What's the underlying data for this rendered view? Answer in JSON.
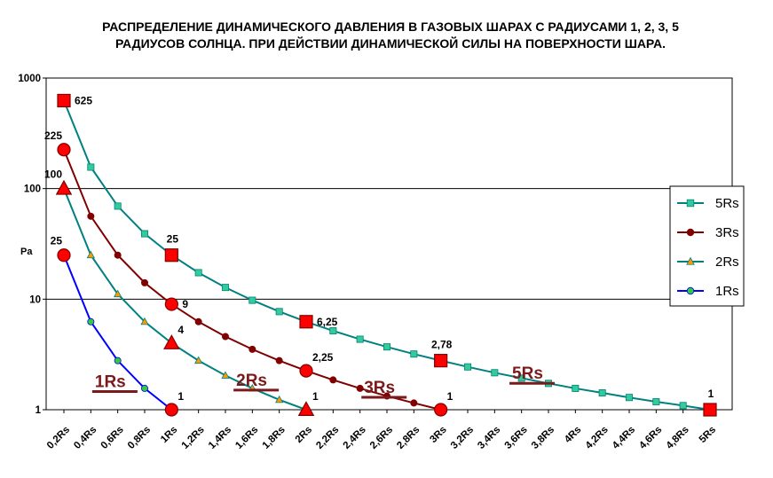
{
  "chart_data": {
    "type": "line",
    "title_lines": [
      "РАСПРЕДЕЛЕНИЕ ДИНАМИЧЕСКОГО ДАВЛЕНИЯ В ГАЗОВЫХ ШАРАХ С РАДИУСАМИ 1, 2, 3, 5",
      "РАДИУСОВ СОЛНЦА. ПРИ ДЕЙСТВИИ ДИНАМИЧЕСКОЙ СИЛЫ НА ПОВЕРХНОСТИ ШАРА."
    ],
    "ylabel": "Pa",
    "y_scale": "log",
    "ylim": [
      1,
      1000
    ],
    "y_ticks": [
      {
        "value": 1,
        "label": "1"
      },
      {
        "value": 10,
        "label": "10"
      },
      {
        "value": 100,
        "label": "100"
      },
      {
        "value": 1000,
        "label": "1000"
      }
    ],
    "xlim": [
      0.2,
      5.0
    ],
    "x_ticks": [
      {
        "value": 0.2,
        "label": "0,2Rs",
        "color": "#000000"
      },
      {
        "value": 0.4,
        "label": "0,4Rs",
        "color": "#000000"
      },
      {
        "value": 0.6,
        "label": "0,6Rs",
        "color": "#000000"
      },
      {
        "value": 0.8,
        "label": "0,8Rs",
        "color": "#000000"
      },
      {
        "value": 1.0,
        "label": "1Rs",
        "color": "#ff0000"
      },
      {
        "value": 1.2,
        "label": "1,2Rs",
        "color": "#000000"
      },
      {
        "value": 1.4,
        "label": "1,4Rs",
        "color": "#000000"
      },
      {
        "value": 1.6,
        "label": "1,6Rs",
        "color": "#000000"
      },
      {
        "value": 1.8,
        "label": "1,8Rs",
        "color": "#000000"
      },
      {
        "value": 2.0,
        "label": "2Rs",
        "color": "#ff0000"
      },
      {
        "value": 2.2,
        "label": "2,2Rs",
        "color": "#000000"
      },
      {
        "value": 2.4,
        "label": "2,4Rs",
        "color": "#000000"
      },
      {
        "value": 2.6,
        "label": "2,6Rs",
        "color": "#000000"
      },
      {
        "value": 2.8,
        "label": "2,8Rs",
        "color": "#000000"
      },
      {
        "value": 3.0,
        "label": "3Rs",
        "color": "#ff0000"
      },
      {
        "value": 3.2,
        "label": "3,2Rs",
        "color": "#000000"
      },
      {
        "value": 3.4,
        "label": "3,4Rs",
        "color": "#000000"
      },
      {
        "value": 3.6,
        "label": "3,6Rs",
        "color": "#000000"
      },
      {
        "value": 3.8,
        "label": "3,8Rs",
        "color": "#000000"
      },
      {
        "value": 4.0,
        "label": "4Rs",
        "color": "#000000"
      },
      {
        "value": 4.2,
        "label": "4,2Rs",
        "color": "#000000"
      },
      {
        "value": 4.4,
        "label": "4,4Rs",
        "color": "#000000"
      },
      {
        "value": 4.6,
        "label": "4,6Rs",
        "color": "#000000"
      },
      {
        "value": 4.8,
        "label": "4,8Rs",
        "color": "#000000"
      },
      {
        "value": 5.0,
        "label": "5Rs",
        "color": "#ff0000"
      }
    ],
    "legend": {
      "placement": "right"
    },
    "series": [
      {
        "name": "5Rs",
        "color": "#008080",
        "marker": "square",
        "marker_color": "#33cc99",
        "x": [
          0.2,
          0.4,
          0.6,
          0.8,
          1.0,
          1.2,
          1.4,
          1.6,
          1.8,
          2.0,
          2.2,
          2.4,
          2.6,
          2.8,
          3.0,
          3.2,
          3.4,
          3.6,
          3.8,
          4.0,
          4.2,
          4.4,
          4.6,
          4.8,
          5.0
        ],
        "y": [
          625,
          156.25,
          69.44,
          39.06,
          25,
          17.36,
          12.76,
          9.77,
          7.72,
          6.25,
          5.17,
          4.34,
          3.7,
          3.19,
          2.78,
          2.44,
          2.16,
          1.93,
          1.73,
          1.56,
          1.42,
          1.29,
          1.18,
          1.09,
          1
        ]
      },
      {
        "name": "3Rs",
        "color": "#800000",
        "marker": "circle",
        "marker_color": "#800000",
        "x": [
          0.2,
          0.4,
          0.6,
          0.8,
          1.0,
          1.2,
          1.4,
          1.6,
          1.8,
          2.0,
          2.2,
          2.4,
          2.6,
          2.8,
          3.0
        ],
        "y": [
          225,
          56.25,
          25,
          14.06,
          9,
          6.25,
          4.59,
          3.52,
          2.78,
          2.25,
          1.86,
          1.56,
          1.33,
          1.15,
          1
        ]
      },
      {
        "name": "2Rs",
        "color": "#008080",
        "marker": "triangle",
        "marker_color": "#ff9900",
        "x": [
          0.2,
          0.4,
          0.6,
          0.8,
          1.0,
          1.2,
          1.4,
          1.6,
          1.8,
          2.0
        ],
        "y": [
          100,
          25,
          11.11,
          6.25,
          4,
          2.78,
          2.04,
          1.56,
          1.23,
          1
        ]
      },
      {
        "name": "1Rs",
        "color": "#0000ff",
        "marker": "circle",
        "marker_color": "#33cc33",
        "x": [
          0.2,
          0.4,
          0.6,
          0.8,
          1.0
        ],
        "y": [
          25,
          6.25,
          2.78,
          1.56,
          1
        ]
      }
    ],
    "data_labels": [
      {
        "series": "5Rs",
        "x": 0.2,
        "y": 625,
        "text": "625",
        "pos": "right",
        "shape": "square"
      },
      {
        "series": "5Rs",
        "x": 1.0,
        "y": 25,
        "text": "25",
        "pos": "above",
        "shape": "square"
      },
      {
        "series": "5Rs",
        "x": 2.0,
        "y": 6.25,
        "text": "6,25",
        "pos": "right",
        "shape": "square"
      },
      {
        "series": "5Rs",
        "x": 3.0,
        "y": 2.78,
        "text": "2,78",
        "pos": "above",
        "shape": "square"
      },
      {
        "series": "5Rs",
        "x": 5.0,
        "y": 1,
        "text": "1",
        "pos": "above",
        "shape": "square"
      },
      {
        "series": "3Rs",
        "x": 0.2,
        "y": 225,
        "text": "225",
        "pos": "aboveleft",
        "shape": "circle"
      },
      {
        "series": "3Rs",
        "x": 1.0,
        "y": 9,
        "text": "9",
        "pos": "right",
        "shape": "circle"
      },
      {
        "series": "3Rs",
        "x": 2.0,
        "y": 2.25,
        "text": "2,25",
        "pos": "aboveright",
        "shape": "circle"
      },
      {
        "series": "3Rs",
        "x": 3.0,
        "y": 1,
        "text": "1",
        "pos": "aboveright",
        "shape": "circle"
      },
      {
        "series": "2Rs",
        "x": 0.2,
        "y": 100,
        "text": "100",
        "pos": "aboveleft",
        "shape": "triangle"
      },
      {
        "series": "2Rs",
        "x": 1.0,
        "y": 4,
        "text": "4",
        "pos": "aboveright",
        "shape": "triangle"
      },
      {
        "series": "2Rs",
        "x": 2.0,
        "y": 1,
        "text": "1",
        "pos": "aboveright",
        "shape": "triangle"
      },
      {
        "series": "1Rs",
        "x": 0.2,
        "y": 25,
        "text": "25",
        "pos": "aboveleft",
        "shape": "circle"
      },
      {
        "series": "1Rs",
        "x": 1.0,
        "y": 1,
        "text": "1",
        "pos": "aboveright",
        "shape": "circle"
      }
    ],
    "annotations": [
      {
        "text": "1Rs",
        "x": 0.43,
        "y": 1.6
      },
      {
        "text": "2Rs",
        "x": 1.48,
        "y": 1.65
      },
      {
        "text": "3Rs",
        "x": 2.43,
        "y": 1.42
      },
      {
        "text": "5Rs",
        "x": 3.53,
        "y": 1.9
      }
    ],
    "grid": {
      "horizontal": true,
      "vertical": false
    },
    "big_marker_colors": {
      "fill": "#ff0000",
      "border": "#800000"
    },
    "annotation_color": "#7b1a1a"
  }
}
